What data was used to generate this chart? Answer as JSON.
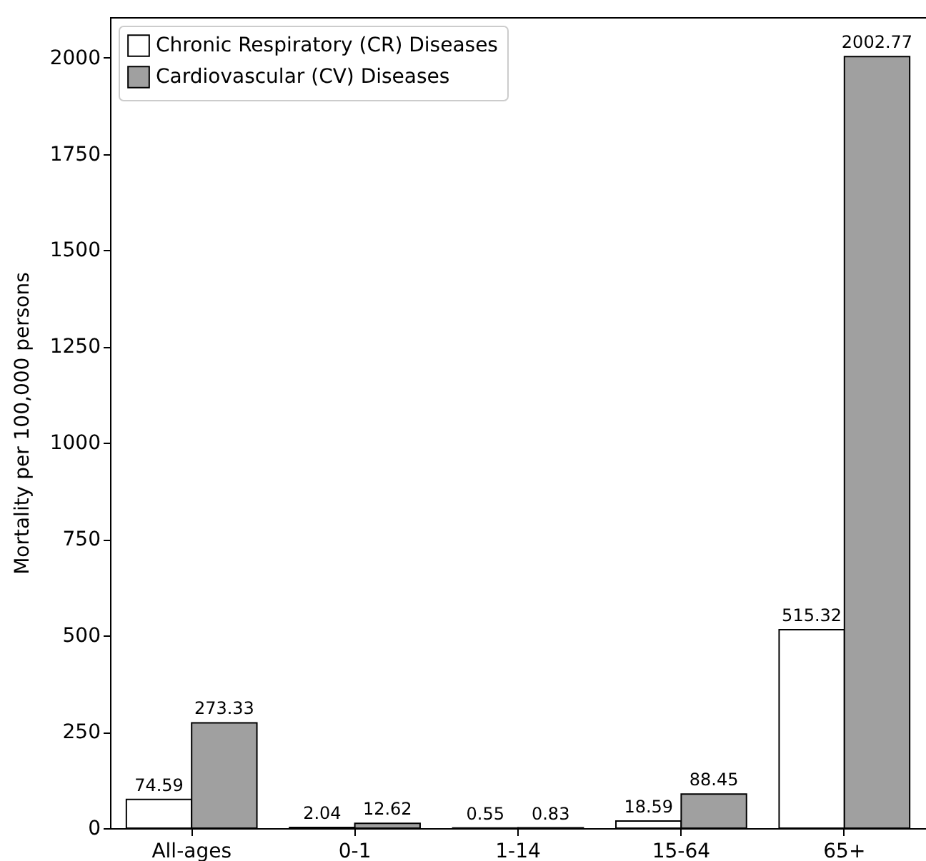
{
  "chart_data": {
    "type": "bar",
    "ylabel": "Mortality per 100,000 persons",
    "categories": [
      "All-ages",
      "0-1",
      "1-14",
      "15-64",
      "65+"
    ],
    "series": [
      {
        "name": "Chronic Respiratory (CR) Diseases",
        "color": "#ffffff",
        "values": [
          74.59,
          2.04,
          0.55,
          18.59,
          515.32
        ]
      },
      {
        "name": "Cardiovascular (CV) Diseases",
        "color": "#a0a0a0",
        "values": [
          273.33,
          12.62,
          0.83,
          88.45,
          2002.77
        ]
      }
    ],
    "ylim": [
      0,
      2105
    ],
    "yticks": [
      0,
      250,
      500,
      750,
      1000,
      1250,
      1500,
      1750,
      2000
    ],
    "data_labels": true,
    "legend": "top left",
    "grid": false
  }
}
